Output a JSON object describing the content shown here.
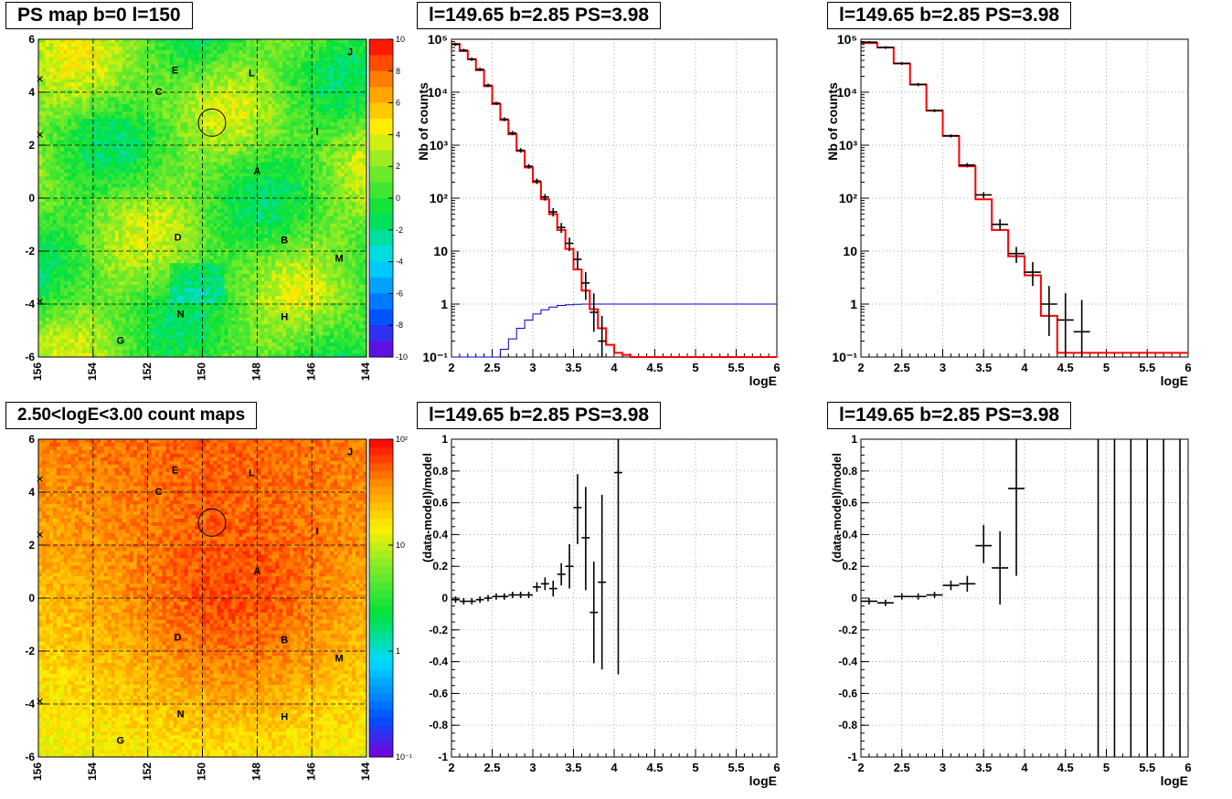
{
  "titles": {
    "map_top": "PS map b=0 l=150",
    "map_bottom": "2.50<logE<3.00 count maps",
    "spec_top_mid": "l=149.65 b=2.85 PS=3.98",
    "spec_top_right": "l=149.65 b=2.85 PS=3.98",
    "resid_bot_mid": "l=149.65 b=2.85 PS=3.98",
    "resid_bot_right": "l=149.65 b=2.85 PS=3.98"
  },
  "chart_data": [
    {
      "id": "ps-map",
      "type": "heatmap",
      "title": "PS map b=0 l=150",
      "xlim": [
        156,
        144
      ],
      "ylim": [
        -6,
        6
      ],
      "x_ticks": [
        "156",
        "154",
        "152",
        "150",
        "148",
        "146",
        "144"
      ],
      "y_ticks": [
        "6",
        "4",
        "2",
        "0",
        "-2",
        "-4",
        "-6"
      ],
      "z_range": [
        -10,
        10
      ],
      "z_ticks": [
        "10",
        "8",
        "6",
        "4",
        "2",
        "0",
        "-2",
        "-4",
        "-6",
        "-8",
        "-10"
      ],
      "circle": {
        "l": 149.65,
        "b": 2.85,
        "r": 0.5
      },
      "sources": [
        {
          "label": "E",
          "l": 151.0,
          "b": 4.7
        },
        {
          "label": "L",
          "l": 148.2,
          "b": 4.6
        },
        {
          "label": "J",
          "l": 144.6,
          "b": 5.4
        },
        {
          "label": "C",
          "l": 151.6,
          "b": 3.9
        },
        {
          "label": "I",
          "l": 145.8,
          "b": 2.4
        },
        {
          "label": "A",
          "l": 148.0,
          "b": 0.9
        },
        {
          "label": "D",
          "l": 150.9,
          "b": -1.6
        },
        {
          "label": "B",
          "l": 147.0,
          "b": -1.7
        },
        {
          "label": "M",
          "l": 145.0,
          "b": -2.4
        },
        {
          "label": "N",
          "l": 150.8,
          "b": -4.5
        },
        {
          "label": "H",
          "l": 147.0,
          "b": -4.6
        },
        {
          "label": "G",
          "l": 153.0,
          "b": -5.5
        }
      ]
    },
    {
      "id": "count-map",
      "type": "heatmap",
      "title": "2.50<logE<3.00 count maps",
      "xlim": [
        156,
        144
      ],
      "ylim": [
        -6,
        6
      ],
      "x_ticks": [
        "156",
        "154",
        "152",
        "150",
        "148",
        "146",
        "144"
      ],
      "y_ticks": [
        "6",
        "4",
        "2",
        "0",
        "-2",
        "-4",
        "-6"
      ],
      "z_range": [
        0.1,
        100
      ],
      "z_scale": "log",
      "z_ticks": [
        "10²",
        "10",
        "1",
        "10⁻¹"
      ],
      "circle": {
        "l": 149.65,
        "b": 2.85,
        "r": 0.5
      },
      "sources": [
        {
          "label": "E",
          "l": 151.0,
          "b": 4.7
        },
        {
          "label": "L",
          "l": 148.2,
          "b": 4.6
        },
        {
          "label": "J",
          "l": 144.6,
          "b": 5.4
        },
        {
          "label": "C",
          "l": 151.6,
          "b": 3.9
        },
        {
          "label": "I",
          "l": 145.8,
          "b": 2.4
        },
        {
          "label": "A",
          "l": 148.0,
          "b": 0.9
        },
        {
          "label": "D",
          "l": 150.9,
          "b": -1.6
        },
        {
          "label": "B",
          "l": 147.0,
          "b": -1.7
        },
        {
          "label": "M",
          "l": 145.0,
          "b": -2.4
        },
        {
          "label": "N",
          "l": 150.8,
          "b": -4.5
        },
        {
          "label": "H",
          "l": 147.0,
          "b": -4.6
        },
        {
          "label": "G",
          "l": 153.0,
          "b": -5.5
        }
      ]
    },
    {
      "id": "spectrum-a",
      "type": "line",
      "title": "l=149.65 b=2.85 PS=3.98",
      "xlabel": "logE",
      "ylabel": "Nb of counts",
      "xlim": [
        2,
        6
      ],
      "ylim": [
        0.1,
        100000
      ],
      "yscale": "log",
      "grid": true,
      "model_bins": {
        "edges": [
          2.0,
          2.1,
          2.2,
          2.3,
          2.4,
          2.5,
          2.6,
          2.7,
          2.8,
          2.9,
          3.0,
          3.1,
          3.2,
          3.3,
          3.4,
          3.5,
          3.6,
          3.7,
          3.8,
          3.9,
          4.0,
          4.1,
          4.2,
          4.3,
          6.0
        ],
        "values": [
          82000,
          60000,
          42000,
          26000,
          13000,
          6000,
          3000,
          1600,
          780,
          380,
          200,
          95,
          50,
          25,
          11,
          4.5,
          1.8,
          0.8,
          0.35,
          0.17,
          0.12,
          0.11,
          0.1,
          0.1
        ]
      },
      "smooth_curve": {
        "x": [
          2.55,
          2.6,
          2.7,
          2.8,
          2.9,
          3.0,
          3.1,
          3.2,
          3.3,
          3.4,
          3.5,
          3.6,
          3.7,
          3.8,
          6.0
        ],
        "y": [
          0.1,
          0.14,
          0.22,
          0.35,
          0.5,
          0.65,
          0.78,
          0.88,
          0.94,
          0.97,
          0.99,
          1,
          1,
          1,
          1
        ]
      },
      "points": [
        {
          "x": 2.05,
          "y": 80000,
          "lo": 75000,
          "hi": 86000
        },
        {
          "x": 2.15,
          "y": 62000,
          "lo": 58000,
          "hi": 66000
        },
        {
          "x": 2.25,
          "y": 42000,
          "lo": 39000,
          "hi": 45000
        },
        {
          "x": 2.35,
          "y": 27000,
          "lo": 25000,
          "hi": 29000
        },
        {
          "x": 2.45,
          "y": 13500,
          "lo": 12500,
          "hi": 14500
        },
        {
          "x": 2.55,
          "y": 6200,
          "lo": 5800,
          "hi": 6600
        },
        {
          "x": 2.65,
          "y": 3100,
          "lo": 2850,
          "hi": 3350
        },
        {
          "x": 2.75,
          "y": 1700,
          "lo": 1550,
          "hi": 1850
        },
        {
          "x": 2.85,
          "y": 800,
          "lo": 720,
          "hi": 880
        },
        {
          "x": 2.95,
          "y": 400,
          "lo": 360,
          "hi": 440
        },
        {
          "x": 3.05,
          "y": 210,
          "lo": 185,
          "hi": 235
        },
        {
          "x": 3.15,
          "y": 105,
          "lo": 90,
          "hi": 120
        },
        {
          "x": 3.25,
          "y": 55,
          "lo": 45,
          "hi": 65
        },
        {
          "x": 3.35,
          "y": 28,
          "lo": 22,
          "hi": 34
        },
        {
          "x": 3.45,
          "y": 14,
          "lo": 10,
          "hi": 18
        },
        {
          "x": 3.55,
          "y": 7,
          "lo": 4.5,
          "hi": 10
        },
        {
          "x": 3.65,
          "y": 2.5,
          "lo": 1.2,
          "hi": 4
        },
        {
          "x": 3.75,
          "y": 0.7,
          "lo": 0.3,
          "hi": 1.6
        },
        {
          "x": 3.85,
          "y": 0.2,
          "lo": 0.1,
          "hi": 0.6
        }
      ]
    },
    {
      "id": "spectrum-b",
      "type": "line",
      "title": "l=149.65 b=2.85 PS=3.98",
      "xlabel": "logE",
      "ylabel": "Nb of counts",
      "xlim": [
        2,
        6
      ],
      "ylim": [
        0.1,
        100000
      ],
      "yscale": "log",
      "grid": true,
      "model_bins": {
        "edges": [
          2.0,
          2.2,
          2.4,
          2.6,
          2.8,
          3.0,
          3.2,
          3.4,
          3.6,
          3.8,
          4.0,
          4.2,
          4.4,
          6.0
        ],
        "values": [
          85000,
          70000,
          35000,
          14000,
          4500,
          1500,
          400,
          95,
          25,
          8,
          3.5,
          0.6,
          0.12
        ]
      },
      "points": [
        {
          "x": 2.1,
          "y": 88000,
          "lo": 84000,
          "hi": 92000
        },
        {
          "x": 2.3,
          "y": 70000,
          "lo": 66000,
          "hi": 74000
        },
        {
          "x": 2.5,
          "y": 35000,
          "lo": 33000,
          "hi": 37000
        },
        {
          "x": 2.7,
          "y": 14000,
          "lo": 13000,
          "hi": 15000
        },
        {
          "x": 2.9,
          "y": 4500,
          "lo": 4200,
          "hi": 4800
        },
        {
          "x": 3.1,
          "y": 1500,
          "lo": 1400,
          "hi": 1600
        },
        {
          "x": 3.3,
          "y": 420,
          "lo": 380,
          "hi": 460
        },
        {
          "x": 3.5,
          "y": 115,
          "lo": 100,
          "hi": 130
        },
        {
          "x": 3.7,
          "y": 32,
          "lo": 25,
          "hi": 40
        },
        {
          "x": 3.9,
          "y": 9,
          "lo": 6,
          "hi": 12
        },
        {
          "x": 4.1,
          "y": 4,
          "lo": 2.2,
          "hi": 6.2
        },
        {
          "x": 4.3,
          "y": 1,
          "lo": 0.25,
          "hi": 2.2
        },
        {
          "x": 4.5,
          "y": 0.5,
          "lo": 0.1,
          "hi": 1.6
        },
        {
          "x": 4.7,
          "y": 0.3,
          "lo": 0.1,
          "hi": 1.2
        }
      ]
    },
    {
      "id": "residual-a",
      "type": "scatter",
      "title": "l=149.65 b=2.85 PS=3.98",
      "xlabel": "logE",
      "ylabel": "(data-model)/model",
      "xlim": [
        2,
        6
      ],
      "ylim": [
        -1,
        1
      ],
      "grid": true,
      "x_ticks": [
        "2",
        "2.5",
        "3",
        "3.5",
        "4",
        "4.5",
        "5",
        "5.5",
        "6"
      ],
      "y_ticks": [
        "1",
        "0.8",
        "0.6",
        "0.4",
        "0.2",
        "0",
        "-0.2",
        "-0.4",
        "-0.6",
        "-0.8",
        "-1"
      ],
      "points": [
        {
          "x": 2.05,
          "y": -0.01,
          "lo": -0.03,
          "hi": 0.01,
          "w": 0.05
        },
        {
          "x": 2.15,
          "y": -0.02,
          "lo": -0.04,
          "hi": 0.0,
          "w": 0.05
        },
        {
          "x": 2.25,
          "y": -0.02,
          "lo": -0.04,
          "hi": 0.0,
          "w": 0.05
        },
        {
          "x": 2.35,
          "y": -0.01,
          "lo": -0.03,
          "hi": 0.01,
          "w": 0.05
        },
        {
          "x": 2.45,
          "y": 0.0,
          "lo": -0.02,
          "hi": 0.02,
          "w": 0.05
        },
        {
          "x": 2.55,
          "y": 0.01,
          "lo": -0.01,
          "hi": 0.03,
          "w": 0.05
        },
        {
          "x": 2.65,
          "y": 0.01,
          "lo": -0.01,
          "hi": 0.03,
          "w": 0.05
        },
        {
          "x": 2.75,
          "y": 0.02,
          "lo": 0.0,
          "hi": 0.04,
          "w": 0.05
        },
        {
          "x": 2.85,
          "y": 0.02,
          "lo": 0.0,
          "hi": 0.04,
          "w": 0.05
        },
        {
          "x": 2.95,
          "y": 0.02,
          "lo": 0.0,
          "hi": 0.04,
          "w": 0.05
        },
        {
          "x": 3.05,
          "y": 0.07,
          "lo": 0.04,
          "hi": 0.1,
          "w": 0.05
        },
        {
          "x": 3.15,
          "y": 0.09,
          "lo": 0.05,
          "hi": 0.13,
          "w": 0.05
        },
        {
          "x": 3.25,
          "y": 0.06,
          "lo": 0.01,
          "hi": 0.11,
          "w": 0.05
        },
        {
          "x": 3.35,
          "y": 0.15,
          "lo": 0.08,
          "hi": 0.22,
          "w": 0.05
        },
        {
          "x": 3.45,
          "y": 0.2,
          "lo": 0.06,
          "hi": 0.34,
          "w": 0.05
        },
        {
          "x": 3.55,
          "y": 0.57,
          "lo": 0.34,
          "hi": 0.78,
          "w": 0.05
        },
        {
          "x": 3.65,
          "y": 0.38,
          "lo": 0.05,
          "hi": 0.7,
          "w": 0.05
        },
        {
          "x": 3.75,
          "y": -0.09,
          "lo": -0.41,
          "hi": 0.23,
          "w": 0.05
        },
        {
          "x": 3.85,
          "y": 0.1,
          "lo": -0.45,
          "hi": 0.65,
          "w": 0.05
        },
        {
          "x": 4.05,
          "y": 0.79,
          "lo": -0.48,
          "hi": 1.0,
          "w": 0.05
        }
      ]
    },
    {
      "id": "residual-b",
      "type": "scatter",
      "title": "l=149.65 b=2.85 PS=3.98",
      "xlabel": "logE",
      "ylabel": "(data-model)/model",
      "xlim": [
        2,
        6
      ],
      "ylim": [
        -1,
        1
      ],
      "grid": true,
      "x_ticks": [
        "2",
        "2.5",
        "3",
        "3.5",
        "4",
        "4.5",
        "5",
        "5.5",
        "6"
      ],
      "y_ticks": [
        "1",
        "0.8",
        "0.6",
        "0.4",
        "0.2",
        "0",
        "-0.2",
        "-0.4",
        "-0.6",
        "-0.8",
        "-1"
      ],
      "points": [
        {
          "x": 2.1,
          "y": -0.02,
          "lo": -0.04,
          "hi": 0.0,
          "w": 0.1
        },
        {
          "x": 2.3,
          "y": -0.03,
          "lo": -0.05,
          "hi": -0.01,
          "w": 0.1
        },
        {
          "x": 2.5,
          "y": 0.01,
          "lo": -0.01,
          "hi": 0.03,
          "w": 0.1
        },
        {
          "x": 2.7,
          "y": 0.01,
          "lo": -0.01,
          "hi": 0.03,
          "w": 0.1
        },
        {
          "x": 2.9,
          "y": 0.02,
          "lo": 0.0,
          "hi": 0.04,
          "w": 0.1
        },
        {
          "x": 3.1,
          "y": 0.08,
          "lo": 0.05,
          "hi": 0.11,
          "w": 0.1
        },
        {
          "x": 3.3,
          "y": 0.09,
          "lo": 0.04,
          "hi": 0.14,
          "w": 0.1
        },
        {
          "x": 3.5,
          "y": 0.33,
          "lo": 0.22,
          "hi": 0.46,
          "w": 0.1
        },
        {
          "x": 3.7,
          "y": 0.19,
          "lo": -0.04,
          "hi": 0.42,
          "w": 0.1
        },
        {
          "x": 3.9,
          "y": 0.69,
          "lo": 0.14,
          "hi": 1.0,
          "w": 0.1
        },
        {
          "x": 4.9,
          "y": 1.0,
          "lo": -1.0,
          "hi": 1.0,
          "w": 0.1
        },
        {
          "x": 5.1,
          "y": 1.0,
          "lo": -1.0,
          "hi": 1.0,
          "w": 0.1
        },
        {
          "x": 5.3,
          "y": 1.0,
          "lo": -1.0,
          "hi": 1.0,
          "w": 0.1
        },
        {
          "x": 5.5,
          "y": 1.0,
          "lo": -1.0,
          "hi": 1.0,
          "w": 0.1
        },
        {
          "x": 5.7,
          "y": 1.0,
          "lo": -1.0,
          "hi": 1.0,
          "w": 0.1
        },
        {
          "x": 5.9,
          "y": 1.0,
          "lo": -1.0,
          "hi": 1.0,
          "w": 0.1
        }
      ]
    }
  ],
  "colors": {
    "model": "#ff0000",
    "data": "#000000",
    "curve": "#0000cc"
  }
}
